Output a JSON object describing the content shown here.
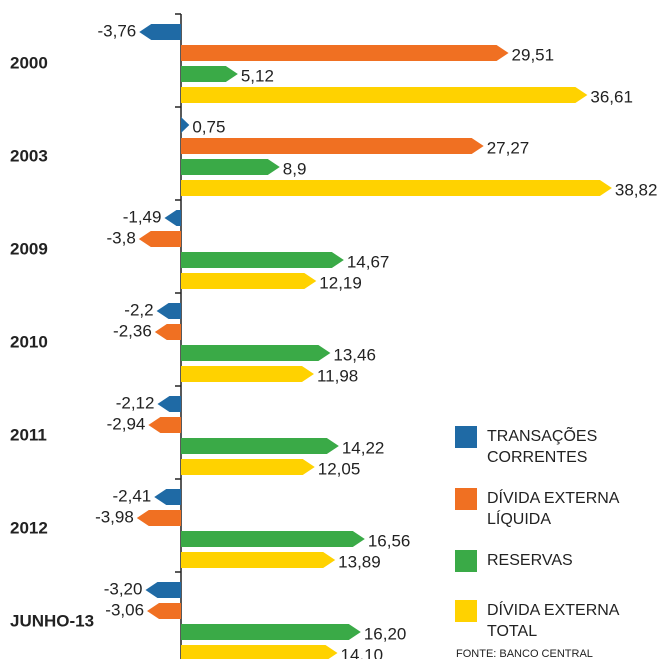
{
  "chart_data": {
    "type": "bar",
    "categories": [
      "2000",
      "2003",
      "2009",
      "2010",
      "2011",
      "2012",
      "JUNHO-13"
    ],
    "series": [
      {
        "name": "TRANSAÇÕES CORRENTES",
        "color": "#1f6aa5",
        "values": [
          -3.76,
          0.75,
          -1.49,
          -2.2,
          -2.12,
          -2.41,
          -3.2
        ],
        "value_labels": [
          "-3,76",
          "0,75",
          "-1,49",
          "-2,2",
          "-2,12",
          "-2,41",
          "-3,20"
        ]
      },
      {
        "name": "DÍVIDA EXTERNA LÍQUIDA",
        "color": "#f07022",
        "values": [
          29.51,
          27.27,
          -3.8,
          -2.36,
          -2.94,
          -3.98,
          -3.06
        ],
        "value_labels": [
          "29,51",
          "27,27",
          "-3,8",
          "-2,36",
          "-2,94",
          "-3,98",
          "-3,06"
        ]
      },
      {
        "name": "RESERVAS",
        "color": "#3aaa47",
        "values": [
          5.12,
          8.9,
          14.67,
          13.46,
          14.22,
          16.56,
          16.2
        ],
        "value_labels": [
          "5,12",
          "8,9",
          "14,67",
          "13,46",
          "14,22",
          "16,56",
          "16,20"
        ]
      },
      {
        "name": "DÍVIDA EXTERNA TOTAL",
        "color": "#ffd200",
        "values": [
          36.61,
          38.82,
          12.19,
          11.98,
          12.05,
          13.89,
          14.1
        ],
        "value_labels": [
          "36,61",
          "38,82",
          "12,19",
          "11,98",
          "12,05",
          "13,89",
          "14,10"
        ]
      }
    ],
    "source": "FONTE: BANCO CENTRAL"
  }
}
